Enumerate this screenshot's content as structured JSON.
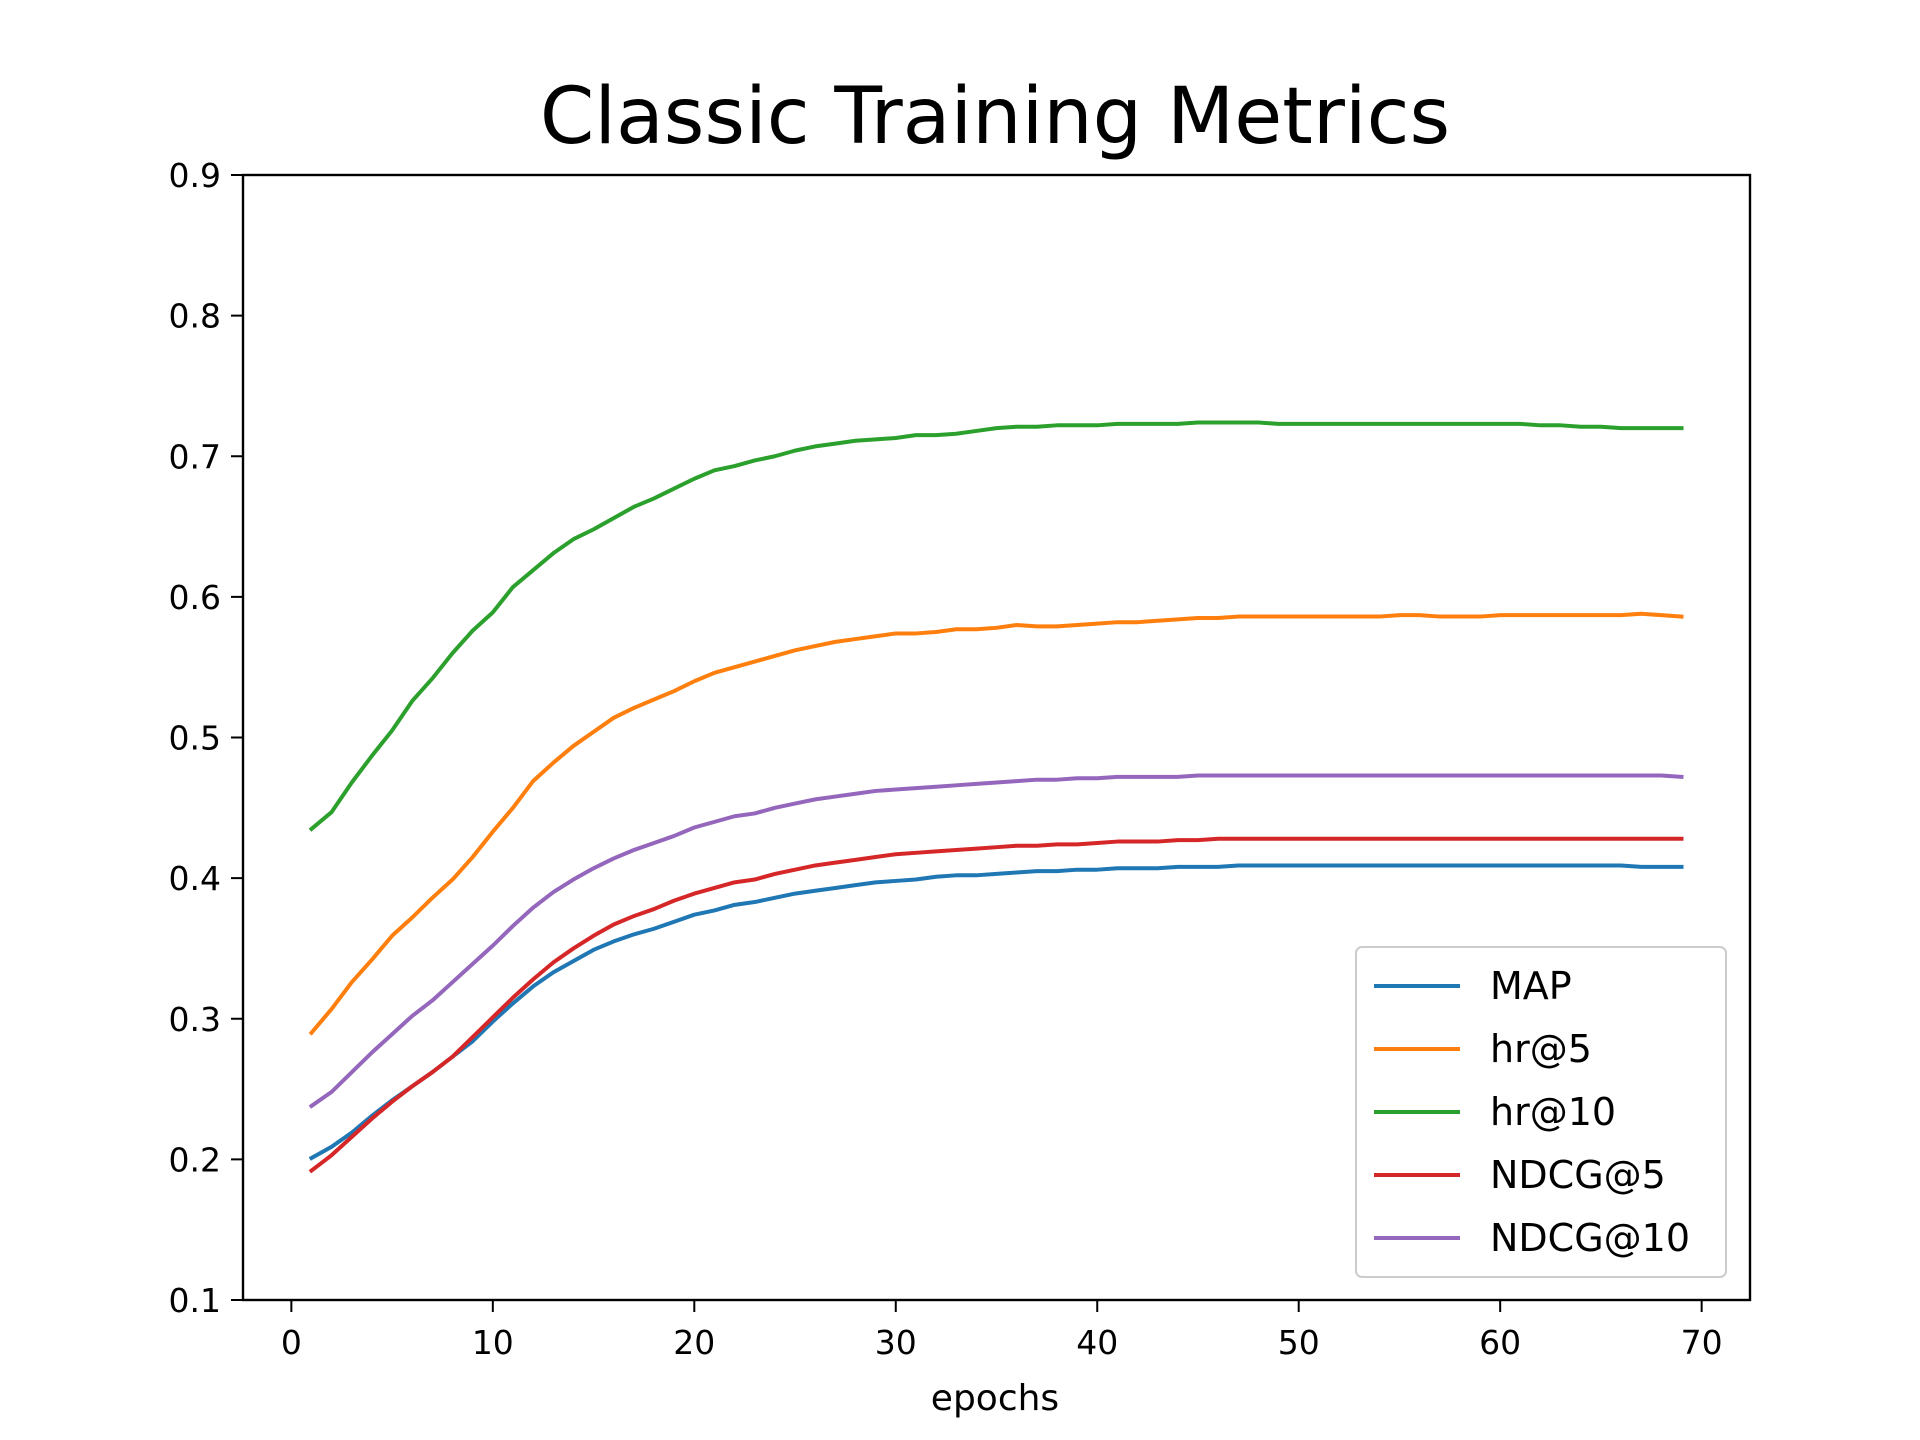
{
  "chart_data": {
    "type": "line",
    "title": "Classic Training Metrics",
    "xlabel": "epochs",
    "ylabel": "",
    "xlim": [
      -2.4,
      72.4
    ],
    "ylim": [
      0.1,
      0.9
    ],
    "xticks": [
      0,
      10,
      20,
      30,
      40,
      50,
      60,
      70
    ],
    "yticks": [
      0.1,
      0.2,
      0.3,
      0.4,
      0.5,
      0.6,
      0.7,
      0.8,
      0.9
    ],
    "grid": false,
    "legend_position": "bottom-right",
    "x": [
      1,
      2,
      3,
      4,
      5,
      6,
      7,
      8,
      9,
      10,
      11,
      12,
      13,
      14,
      15,
      16,
      17,
      18,
      19,
      20,
      21,
      22,
      23,
      24,
      25,
      26,
      27,
      28,
      29,
      30,
      31,
      32,
      33,
      34,
      35,
      36,
      37,
      38,
      39,
      40,
      41,
      42,
      43,
      44,
      45,
      46,
      47,
      48,
      49,
      50,
      51,
      52,
      53,
      54,
      55,
      56,
      57,
      58,
      59,
      60,
      61,
      62,
      63,
      64,
      65,
      66,
      67,
      68,
      69
    ],
    "series": [
      {
        "name": "MAP",
        "color": "#1f77b4",
        "values": [
          0.201,
          0.209,
          0.219,
          0.231,
          0.242,
          0.252,
          0.262,
          0.273,
          0.284,
          0.298,
          0.311,
          0.323,
          0.333,
          0.341,
          0.349,
          0.355,
          0.36,
          0.364,
          0.369,
          0.374,
          0.377,
          0.381,
          0.383,
          0.386,
          0.389,
          0.391,
          0.393,
          0.395,
          0.397,
          0.398,
          0.399,
          0.401,
          0.402,
          0.402,
          0.403,
          0.404,
          0.405,
          0.405,
          0.406,
          0.406,
          0.407,
          0.407,
          0.407,
          0.408,
          0.408,
          0.408,
          0.409,
          0.409,
          0.409,
          0.409,
          0.409,
          0.409,
          0.409,
          0.409,
          0.409,
          0.409,
          0.409,
          0.409,
          0.409,
          0.409,
          0.409,
          0.409,
          0.409,
          0.409,
          0.409,
          0.409,
          0.408,
          0.408,
          0.408
        ]
      },
      {
        "name": "hr@5",
        "color": "#ff7f0e",
        "values": [
          0.29,
          0.307,
          0.326,
          0.342,
          0.359,
          0.372,
          0.386,
          0.399,
          0.415,
          0.433,
          0.45,
          0.469,
          0.482,
          0.494,
          0.504,
          0.514,
          0.521,
          0.527,
          0.533,
          0.54,
          0.546,
          0.55,
          0.554,
          0.558,
          0.562,
          0.565,
          0.568,
          0.57,
          0.572,
          0.574,
          0.574,
          0.575,
          0.577,
          0.577,
          0.578,
          0.58,
          0.579,
          0.579,
          0.58,
          0.581,
          0.582,
          0.582,
          0.583,
          0.584,
          0.585,
          0.585,
          0.586,
          0.586,
          0.586,
          0.586,
          0.586,
          0.586,
          0.586,
          0.586,
          0.587,
          0.587,
          0.586,
          0.586,
          0.586,
          0.587,
          0.587,
          0.587,
          0.587,
          0.587,
          0.587,
          0.587,
          0.588,
          0.587,
          0.586
        ]
      },
      {
        "name": "hr@10",
        "color": "#2ca02c",
        "values": [
          0.435,
          0.447,
          0.468,
          0.487,
          0.505,
          0.526,
          0.542,
          0.56,
          0.576,
          0.589,
          0.607,
          0.619,
          0.631,
          0.641,
          0.648,
          0.656,
          0.664,
          0.67,
          0.677,
          0.684,
          0.69,
          0.693,
          0.697,
          0.7,
          0.704,
          0.707,
          0.709,
          0.711,
          0.712,
          0.713,
          0.715,
          0.715,
          0.716,
          0.718,
          0.72,
          0.721,
          0.721,
          0.722,
          0.722,
          0.722,
          0.723,
          0.723,
          0.723,
          0.723,
          0.724,
          0.724,
          0.724,
          0.724,
          0.723,
          0.723,
          0.723,
          0.723,
          0.723,
          0.723,
          0.723,
          0.723,
          0.723,
          0.723,
          0.723,
          0.723,
          0.723,
          0.722,
          0.722,
          0.721,
          0.721,
          0.72,
          0.72,
          0.72,
          0.72
        ]
      },
      {
        "name": "NDCG@5",
        "color": "#d62728",
        "values": [
          0.192,
          0.203,
          0.216,
          0.229,
          0.241,
          0.252,
          0.262,
          0.273,
          0.287,
          0.301,
          0.315,
          0.328,
          0.34,
          0.35,
          0.359,
          0.367,
          0.373,
          0.378,
          0.384,
          0.389,
          0.393,
          0.397,
          0.399,
          0.403,
          0.406,
          0.409,
          0.411,
          0.413,
          0.415,
          0.417,
          0.418,
          0.419,
          0.42,
          0.421,
          0.422,
          0.423,
          0.423,
          0.424,
          0.424,
          0.425,
          0.426,
          0.426,
          0.426,
          0.427,
          0.427,
          0.428,
          0.428,
          0.428,
          0.428,
          0.428,
          0.428,
          0.428,
          0.428,
          0.428,
          0.428,
          0.428,
          0.428,
          0.428,
          0.428,
          0.428,
          0.428,
          0.428,
          0.428,
          0.428,
          0.428,
          0.428,
          0.428,
          0.428,
          0.428
        ]
      },
      {
        "name": "NDCG@10",
        "color": "#9467bd",
        "values": [
          0.238,
          0.248,
          0.262,
          0.276,
          0.289,
          0.302,
          0.313,
          0.326,
          0.339,
          0.352,
          0.366,
          0.379,
          0.39,
          0.399,
          0.407,
          0.414,
          0.42,
          0.425,
          0.43,
          0.436,
          0.44,
          0.444,
          0.446,
          0.45,
          0.453,
          0.456,
          0.458,
          0.46,
          0.462,
          0.463,
          0.464,
          0.465,
          0.466,
          0.467,
          0.468,
          0.469,
          0.47,
          0.47,
          0.471,
          0.471,
          0.472,
          0.472,
          0.472,
          0.472,
          0.473,
          0.473,
          0.473,
          0.473,
          0.473,
          0.473,
          0.473,
          0.473,
          0.473,
          0.473,
          0.473,
          0.473,
          0.473,
          0.473,
          0.473,
          0.473,
          0.473,
          0.473,
          0.473,
          0.473,
          0.473,
          0.473,
          0.473,
          0.473,
          0.472
        ]
      }
    ]
  }
}
